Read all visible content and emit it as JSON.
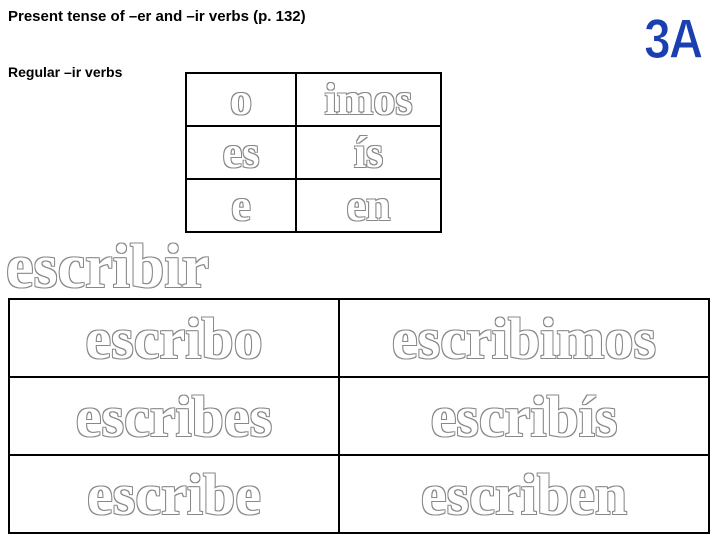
{
  "title": "Present tense of –er and –ir verbs (p. 132)",
  "subtitle": "Regular –ir verbs",
  "corner": "3A",
  "endings": {
    "rows": [
      {
        "left": "o",
        "right": "imos"
      },
      {
        "left": "es",
        "right": "ís"
      },
      {
        "left": "e",
        "right": "en"
      }
    ]
  },
  "infinitive": "escribir",
  "conjugation": {
    "rows": [
      {
        "left": "escribo",
        "right": "escribimos"
      },
      {
        "left": "escribes",
        "right": "escribís"
      },
      {
        "left": "escribe",
        "right": "escriben"
      }
    ]
  },
  "colors": {
    "background": "#ffffff",
    "text": "#000000",
    "outlineFill": "#ffffff",
    "outlineStroke": "#888888",
    "corner": "#1a3fb0"
  }
}
